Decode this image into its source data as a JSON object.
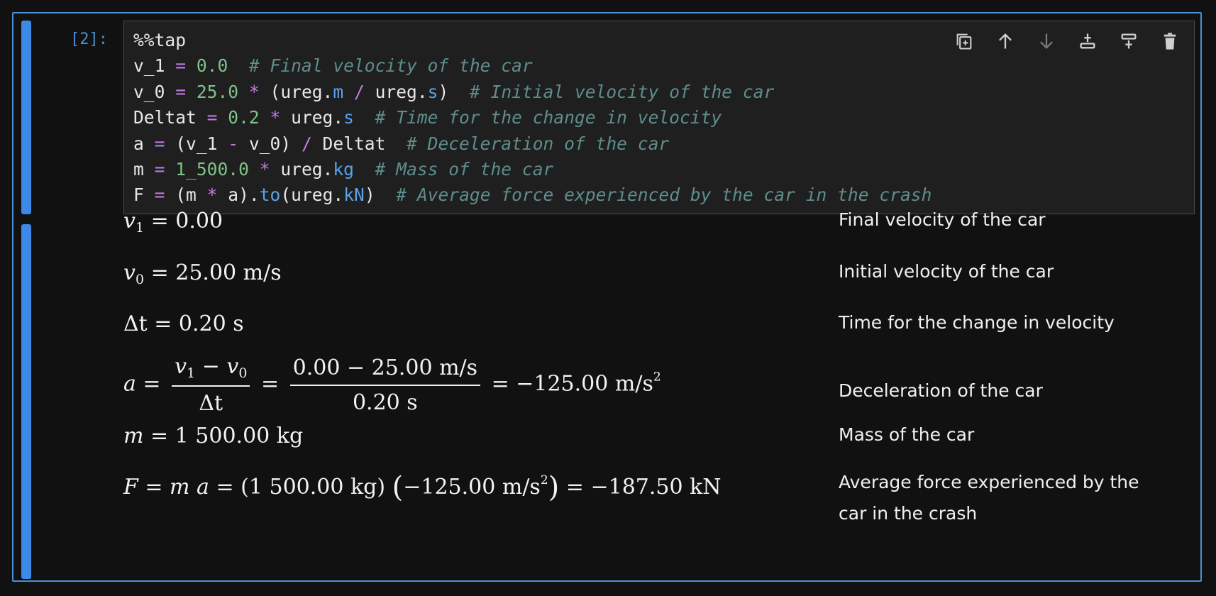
{
  "cell": {
    "prompt": "[2]:",
    "code_lines": [
      [
        {
          "t": "%%tap",
          "c": ""
        }
      ],
      [
        {
          "t": "v_1 ",
          "c": ""
        },
        {
          "t": "=",
          "c": "op"
        },
        {
          "t": " ",
          "c": ""
        },
        {
          "t": "0.0",
          "c": "num"
        },
        {
          "t": "  # Final velocity of the car",
          "c": "cm"
        }
      ],
      [
        {
          "t": "v_0 ",
          "c": ""
        },
        {
          "t": "=",
          "c": "op"
        },
        {
          "t": " ",
          "c": ""
        },
        {
          "t": "25.0",
          "c": "num"
        },
        {
          "t": " ",
          "c": ""
        },
        {
          "t": "*",
          "c": "op"
        },
        {
          "t": " (ureg.",
          "c": ""
        },
        {
          "t": "m",
          "c": "attr"
        },
        {
          "t": " ",
          "c": ""
        },
        {
          "t": "/",
          "c": "op"
        },
        {
          "t": " ureg.",
          "c": ""
        },
        {
          "t": "s",
          "c": "attr"
        },
        {
          "t": ")",
          "c": ""
        },
        {
          "t": "  # Initial velocity of the car",
          "c": "cm"
        }
      ],
      [
        {
          "t": "Deltat ",
          "c": ""
        },
        {
          "t": "=",
          "c": "op"
        },
        {
          "t": " ",
          "c": ""
        },
        {
          "t": "0.2",
          "c": "num"
        },
        {
          "t": " ",
          "c": ""
        },
        {
          "t": "*",
          "c": "op"
        },
        {
          "t": " ureg.",
          "c": ""
        },
        {
          "t": "s",
          "c": "attr"
        },
        {
          "t": "  # Time for the change in velocity",
          "c": "cm"
        }
      ],
      [
        {
          "t": "a ",
          "c": ""
        },
        {
          "t": "=",
          "c": "op"
        },
        {
          "t": " (v_1 ",
          "c": ""
        },
        {
          "t": "-",
          "c": "op"
        },
        {
          "t": " v_0) ",
          "c": ""
        },
        {
          "t": "/",
          "c": "op"
        },
        {
          "t": " Deltat",
          "c": ""
        },
        {
          "t": "  # Deceleration of the car",
          "c": "cm"
        }
      ],
      [
        {
          "t": "m ",
          "c": ""
        },
        {
          "t": "=",
          "c": "op"
        },
        {
          "t": " ",
          "c": ""
        },
        {
          "t": "1_500.0",
          "c": "num"
        },
        {
          "t": " ",
          "c": ""
        },
        {
          "t": "*",
          "c": "op"
        },
        {
          "t": " ureg.",
          "c": ""
        },
        {
          "t": "kg",
          "c": "attr"
        },
        {
          "t": "  # Mass of the car",
          "c": "cm"
        }
      ],
      [
        {
          "t": "F ",
          "c": ""
        },
        {
          "t": "=",
          "c": "op"
        },
        {
          "t": " (m ",
          "c": ""
        },
        {
          "t": "*",
          "c": "op"
        },
        {
          "t": " a).",
          "c": ""
        },
        {
          "t": "to",
          "c": "attr"
        },
        {
          "t": "(ureg.",
          "c": ""
        },
        {
          "t": "kN",
          "c": "attr"
        },
        {
          "t": ")",
          "c": ""
        },
        {
          "t": "  # Average force experienced by the car in the crash",
          "c": "cm"
        }
      ]
    ]
  },
  "toolbar": {
    "buttons": [
      "duplicate-cell-icon",
      "move-up-icon",
      "move-down-icon",
      "insert-below-icon",
      "insert-above-icon",
      "delete-icon"
    ]
  },
  "output": {
    "v1": {
      "lhs": "v",
      "sub": "1",
      "rhs": " = 0.00",
      "desc": "Final velocity of the car"
    },
    "v0": {
      "lhs": "v",
      "sub": "0",
      "rhs": " = 25.00 m/s",
      "desc": "Initial velocity of the car"
    },
    "dt": {
      "expr": "Δt = 0.20 s",
      "desc": "Time for the change in velocity"
    },
    "a": {
      "lhs": "a",
      "eq": " = ",
      "frac1_num_v": "v",
      "frac1_num_s1": "1",
      "frac1_num_mid": " − ",
      "frac1_num_s2": "0",
      "frac1_den": "Δt",
      "eq2": " = ",
      "frac2_num": "0.00 − 25.00 m/s",
      "frac2_den": "0.20 s",
      "result": " = −125.00 m/s",
      "result_sup": "2",
      "desc": "Deceleration of the car"
    },
    "m": {
      "lhs": "m",
      "rhs": " = 1 500.00 kg",
      "desc": "Mass of the car"
    },
    "F": {
      "lhs": "F",
      "mid": " = ",
      "m": "m",
      "a": "a",
      "eq": " = ",
      "p1": "(1 500.00 kg)",
      "p2": "−125.00 m/s",
      "p2_sup": "2",
      "result": " = −187.50 kN",
      "desc": "Average force experienced by the car in the crash"
    }
  },
  "colors": {
    "background": "#111111",
    "cell_border": "#4b8fd6",
    "collapser": "#3d8ae6",
    "prompt": "#4c8fd0",
    "editor_bg": "#1f1f1f",
    "number": "#7fc28a",
    "operator": "#c07be0",
    "attribute": "#5aa2ea",
    "comment": "#5f8d8d"
  }
}
